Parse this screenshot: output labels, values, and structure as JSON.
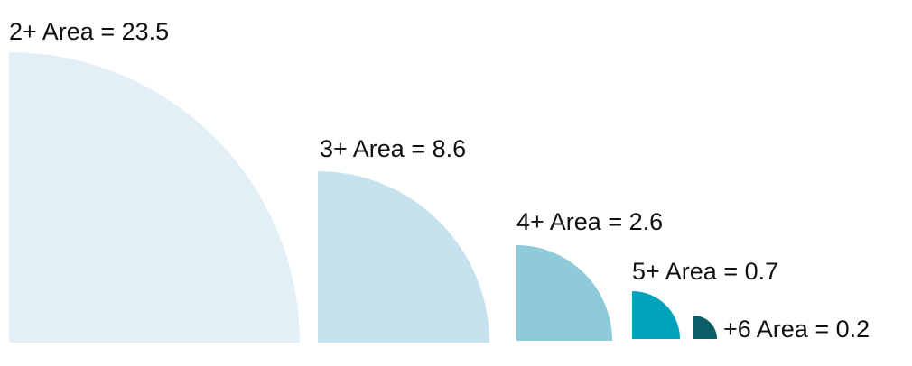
{
  "diagram": {
    "items": [
      {
        "label": "2+ Area = 23.5",
        "area": 23.5,
        "color": "#e2eff6"
      },
      {
        "label": "3+ Area = 8.6",
        "area": 8.6,
        "color": "#c5e2ee"
      },
      {
        "label": "4+ Area = 2.6",
        "area": 2.6,
        "color": "#8ecad8"
      },
      {
        "label": "5+ Area = 0.7",
        "area": 0.7,
        "color": "#00a3bc"
      },
      {
        "label": "+6 Area = 0.2",
        "area": 0.2,
        "color": "#0b5e67"
      }
    ]
  }
}
